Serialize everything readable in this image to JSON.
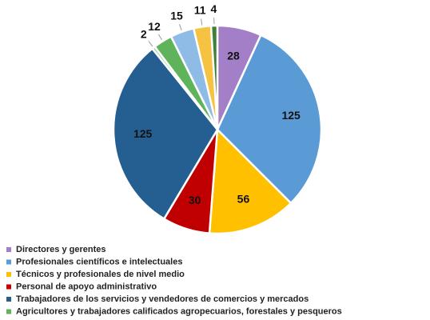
{
  "chart_data": {
    "type": "pie",
    "categories": [
      "Directores y gerentes",
      "Profesionales científicos e intelectuales",
      "Técnicos y profesionales de nivel medio",
      "Personal de apoyo administrativo",
      "Trabajadores de los servicios y vendedores de comercios y mercados",
      null,
      "Agricultores y trabajadores calificados agropecuarios, forestales y pesqueros",
      null,
      null,
      null
    ],
    "values": [
      28,
      125,
      56,
      30,
      125,
      2,
      12,
      15,
      11,
      4
    ],
    "colors": [
      "#a37fc8",
      "#5b9bd5",
      "#ffc000",
      "#c00000",
      "#255e91",
      "#9fd9a8",
      "#5fb35a",
      "#8fbce6",
      "#f5c242",
      "#3f7f3a"
    ],
    "legend_position": "bottom"
  }
}
